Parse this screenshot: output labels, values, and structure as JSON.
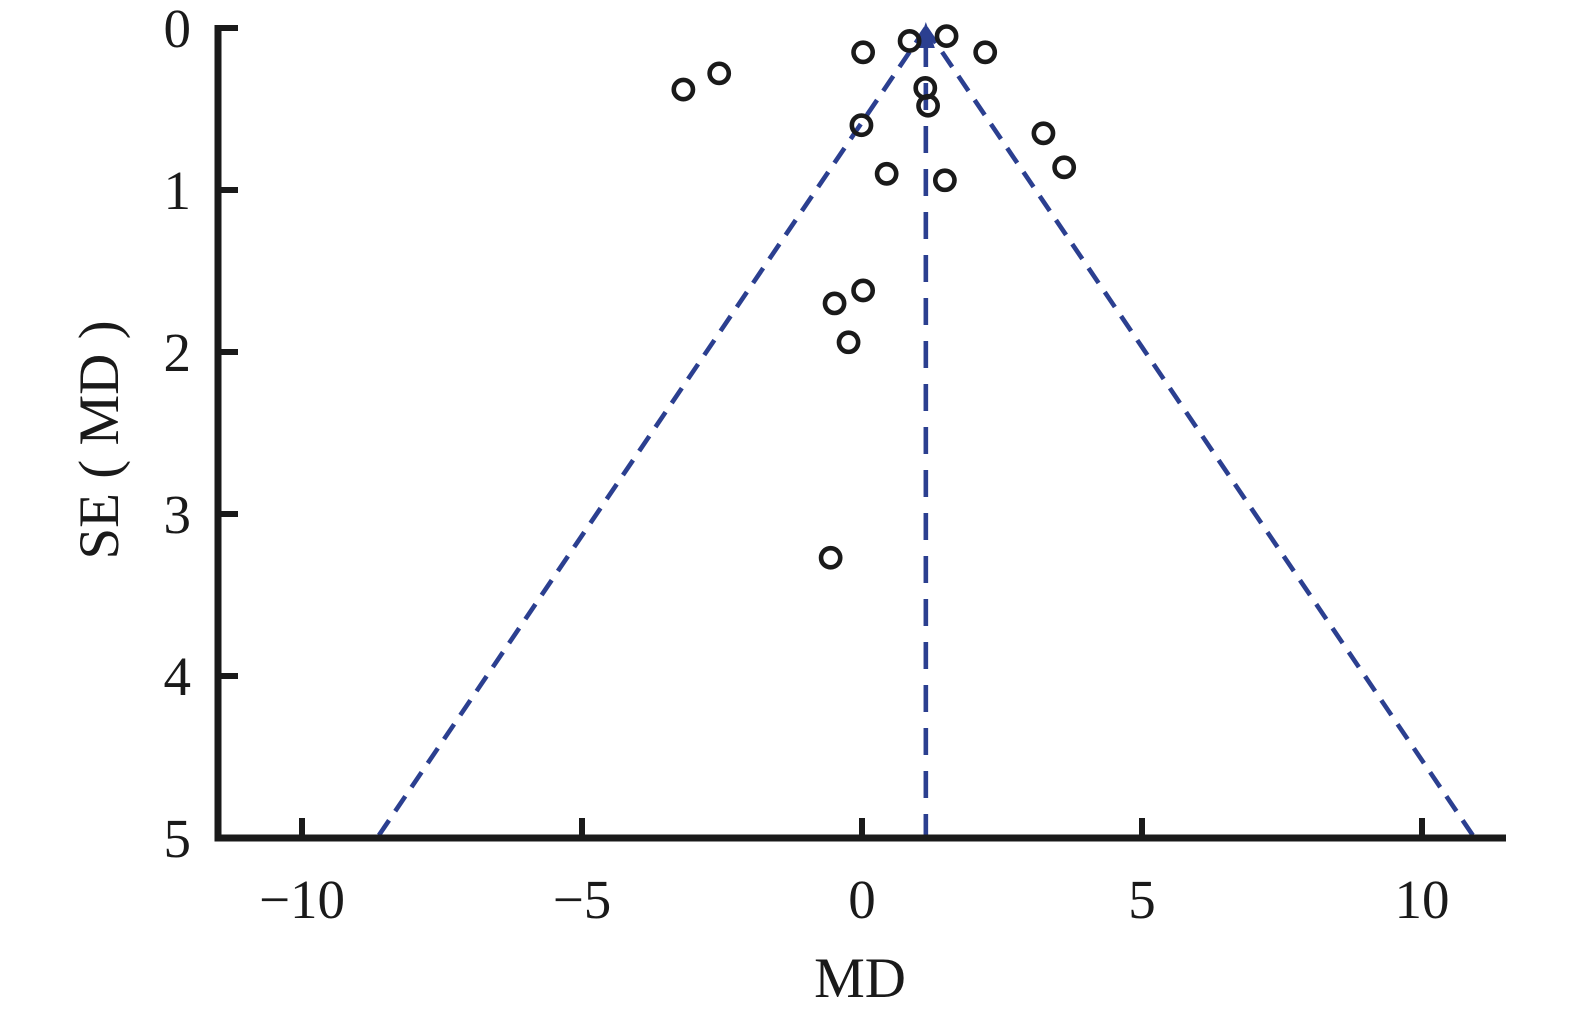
{
  "figure": {
    "background_color": "#ffffff",
    "description": "Funnel plot of mean difference (MD) versus standard error SE(MD) with 95% pseudo-confidence funnel"
  },
  "chart_data": {
    "type": "scatter",
    "title": "",
    "xlabel": "MD",
    "ylabel": "SE ( MD )",
    "xlim": [
      -11.5,
      11.5
    ],
    "ylim": [
      0,
      5
    ],
    "y_axis_inverted": true,
    "grid": false,
    "legend": "none",
    "x_ticks": [
      -10,
      -5,
      0,
      5,
      10
    ],
    "x_tick_labels": [
      "−10",
      "−5",
      "0",
      "5",
      "10"
    ],
    "y_ticks": [
      0,
      1,
      2,
      3,
      4,
      5
    ],
    "y_tick_labels": [
      "0",
      "1",
      "2",
      "3",
      "4",
      "5"
    ],
    "points": [
      {
        "md": -3.19,
        "se": 0.38
      },
      {
        "md": -2.55,
        "se": 0.28
      },
      {
        "md": 0.02,
        "se": 0.15
      },
      {
        "md": 0.85,
        "se": 0.08
      },
      {
        "md": 1.51,
        "se": 0.05
      },
      {
        "md": 2.2,
        "se": 0.15
      },
      {
        "md": 1.13,
        "se": 0.37
      },
      {
        "md": 1.18,
        "se": 0.48
      },
      {
        "md": -0.01,
        "se": 0.6
      },
      {
        "md": 0.44,
        "se": 0.9
      },
      {
        "md": 1.48,
        "se": 0.94
      },
      {
        "md": 3.24,
        "se": 0.65
      },
      {
        "md": 3.61,
        "se": 0.86
      },
      {
        "md": -0.49,
        "se": 1.7
      },
      {
        "md": 0.02,
        "se": 1.62
      },
      {
        "md": -0.24,
        "se": 1.94
      },
      {
        "md": -0.56,
        "se": 3.27
      }
    ],
    "funnel": {
      "center_md": 1.14,
      "slope_per_se": 1.96,
      "se_top": 0,
      "se_bottom": 5,
      "has_center_line": true,
      "center_line_arrow": "up"
    },
    "colors": {
      "axis": "#1a1a1a",
      "marker_stroke": "#1a1a1a",
      "funnel_line": "#2b3f90"
    }
  }
}
